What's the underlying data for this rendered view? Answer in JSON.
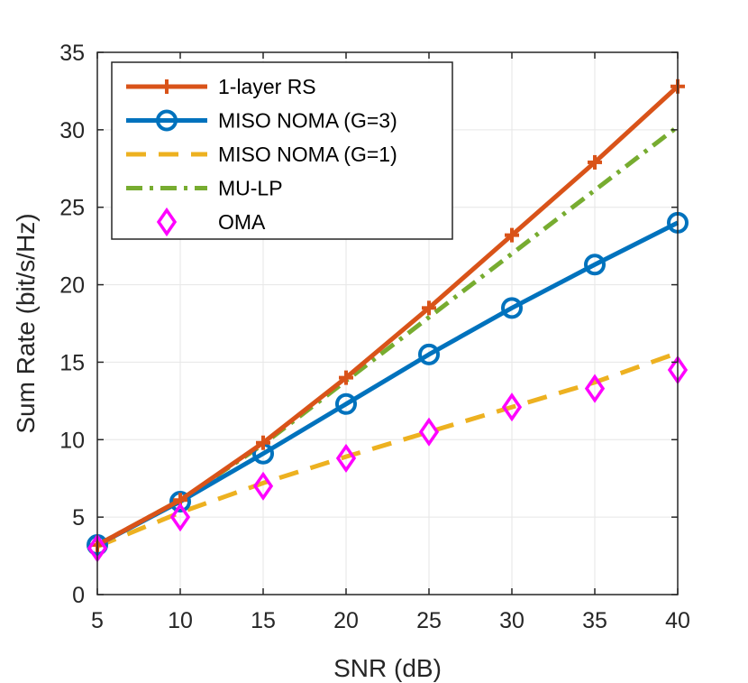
{
  "chart_data": {
    "type": "line",
    "title": "",
    "xlabel": "SNR (dB)",
    "ylabel": "Sum Rate (bit/s/Hz)",
    "xlim": [
      5,
      40
    ],
    "ylim": [
      0,
      35
    ],
    "xticks": [
      5,
      10,
      15,
      20,
      25,
      30,
      35,
      40
    ],
    "yticks": [
      0,
      5,
      10,
      15,
      20,
      25,
      30,
      35
    ],
    "grid": true,
    "legend_position": "top-left",
    "x": [
      5,
      10,
      15,
      20,
      25,
      30,
      35,
      40
    ],
    "series": [
      {
        "name": "1-layer RS",
        "color": "#D95319",
        "style": "solid",
        "marker": "plus",
        "values": [
          3.2,
          6.1,
          9.8,
          14.0,
          18.5,
          23.2,
          27.9,
          32.8
        ]
      },
      {
        "name": "MISO NOMA (G=3)",
        "color": "#0072BD",
        "style": "solid",
        "marker": "circle",
        "values": [
          3.2,
          6.0,
          9.1,
          12.3,
          15.5,
          18.5,
          21.3,
          24.0
        ]
      },
      {
        "name": "MISO NOMA (G=1)",
        "color": "#EDB120",
        "style": "dashed",
        "marker": "none",
        "values": [
          3.1,
          5.3,
          7.2,
          8.9,
          10.5,
          12.1,
          13.7,
          15.6
        ]
      },
      {
        "name": "MU-LP",
        "color": "#77AC30",
        "style": "dashdot",
        "marker": "none",
        "values": [
          3.2,
          6.1,
          9.7,
          13.8,
          17.9,
          22.0,
          26.1,
          30.2
        ]
      },
      {
        "name": "OMA",
        "color": "#FF00FF",
        "style": "none",
        "marker": "diamond",
        "values": [
          3.0,
          5.0,
          7.0,
          8.8,
          10.5,
          12.1,
          13.3,
          14.5
        ]
      }
    ]
  }
}
